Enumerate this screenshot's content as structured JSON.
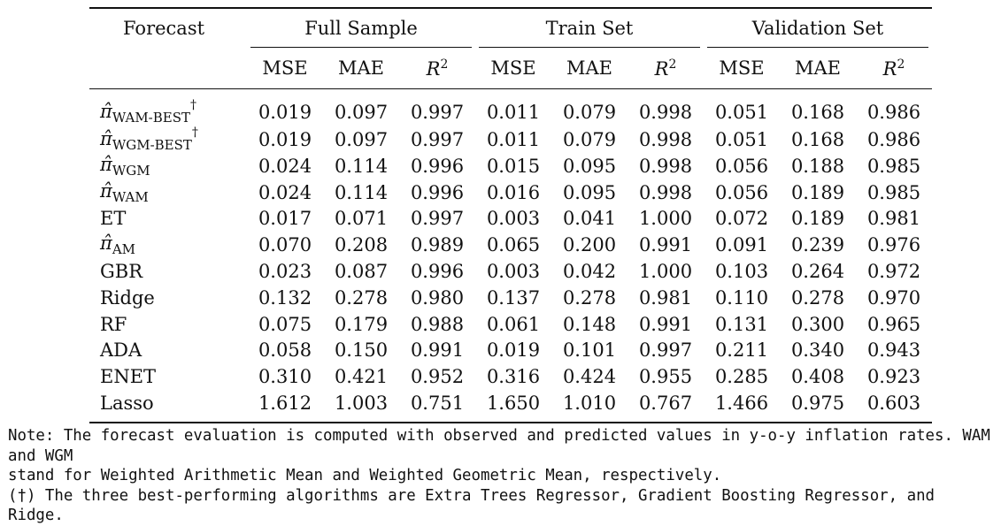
{
  "table": {
    "forecast_header": "Forecast",
    "groups": [
      "Full Sample",
      "Train Set",
      "Validation Set"
    ],
    "metrics": [
      "MSE",
      "MAE",
      "R",
      "2"
    ],
    "rows": [
      {
        "label": "π̂",
        "sub": "WAM-BEST",
        "dag": "†",
        "values": [
          "0.019",
          "0.097",
          "0.997",
          "0.011",
          "0.079",
          "0.998",
          "0.051",
          "0.168",
          "0.986"
        ]
      },
      {
        "label": "π̂",
        "sub": "WGM-BEST",
        "dag": "†",
        "values": [
          "0.019",
          "0.097",
          "0.997",
          "0.011",
          "0.079",
          "0.998",
          "0.051",
          "0.168",
          "0.986"
        ]
      },
      {
        "label": "π̂",
        "sub": "WGM",
        "dag": "",
        "values": [
          "0.024",
          "0.114",
          "0.996",
          "0.015",
          "0.095",
          "0.998",
          "0.056",
          "0.188",
          "0.985"
        ]
      },
      {
        "label": "π̂",
        "sub": "WAM",
        "dag": "",
        "values": [
          "0.024",
          "0.114",
          "0.996",
          "0.016",
          "0.095",
          "0.998",
          "0.056",
          "0.189",
          "0.985"
        ]
      },
      {
        "label": "ET",
        "sub": "",
        "dag": "",
        "values": [
          "0.017",
          "0.071",
          "0.997",
          "0.003",
          "0.041",
          "1.000",
          "0.072",
          "0.189",
          "0.981"
        ]
      },
      {
        "label": "π̂",
        "sub": "AM",
        "dag": "",
        "values": [
          "0.070",
          "0.208",
          "0.989",
          "0.065",
          "0.200",
          "0.991",
          "0.091",
          "0.239",
          "0.976"
        ]
      },
      {
        "label": "GBR",
        "sub": "",
        "dag": "",
        "values": [
          "0.023",
          "0.087",
          "0.996",
          "0.003",
          "0.042",
          "1.000",
          "0.103",
          "0.264",
          "0.972"
        ]
      },
      {
        "label": "Ridge",
        "sub": "",
        "dag": "",
        "values": [
          "0.132",
          "0.278",
          "0.980",
          "0.137",
          "0.278",
          "0.981",
          "0.110",
          "0.278",
          "0.970"
        ]
      },
      {
        "label": "RF",
        "sub": "",
        "dag": "",
        "values": [
          "0.075",
          "0.179",
          "0.988",
          "0.061",
          "0.148",
          "0.991",
          "0.131",
          "0.300",
          "0.965"
        ]
      },
      {
        "label": "ADA",
        "sub": "",
        "dag": "",
        "values": [
          "0.058",
          "0.150",
          "0.991",
          "0.019",
          "0.101",
          "0.997",
          "0.211",
          "0.340",
          "0.943"
        ]
      },
      {
        "label": "ENET",
        "sub": "",
        "dag": "",
        "values": [
          "0.310",
          "0.421",
          "0.952",
          "0.316",
          "0.424",
          "0.955",
          "0.285",
          "0.408",
          "0.923"
        ]
      },
      {
        "label": "Lasso",
        "sub": "",
        "dag": "",
        "values": [
          "1.612",
          "1.003",
          "0.751",
          "1.650",
          "1.010",
          "0.767",
          "1.466",
          "0.975",
          "0.603"
        ]
      }
    ]
  },
  "note": {
    "line1": "Note: The forecast evaluation is computed with observed and predicted values in y-o-y inflation rates. WAM and WGM",
    "line2": "stand for Weighted Arithmetic Mean and Weighted Geometric Mean, respectively.",
    "line3": "(†) The three best-performing algorithms are Extra Trees Regressor, Gradient Boosting Regressor, and Ridge."
  }
}
